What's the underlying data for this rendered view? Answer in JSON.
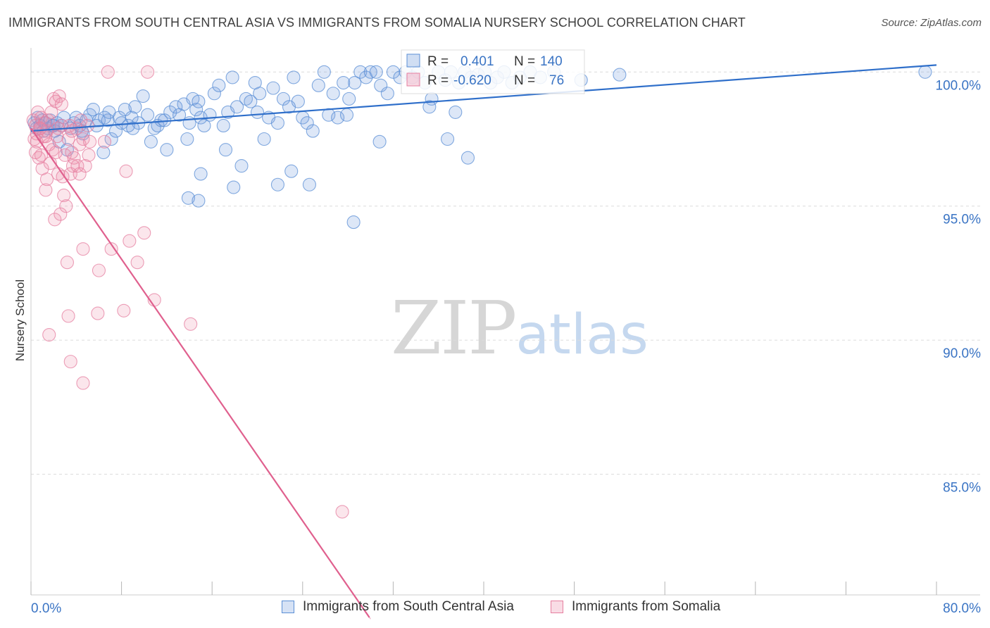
{
  "header": {
    "title": "IMMIGRANTS FROM SOUTH CENTRAL ASIA VS IMMIGRANTS FROM SOMALIA NURSERY SCHOOL CORRELATION CHART",
    "source": "Source: ZipAtlas.com"
  },
  "watermark": {
    "part1": "ZIP",
    "part2": "atlas"
  },
  "colors": {
    "blue": "#5b8fd6",
    "blue_fill": "rgba(120,160,222,0.25)",
    "blue_line": "#2f6fca",
    "pink": "#e67fa0",
    "pink_fill": "rgba(236,140,170,0.22)",
    "pink_line": "#e0608e",
    "axis_text": "#3a74c4",
    "grid": "#dcdcdc"
  },
  "legend_box": {
    "rows": [
      {
        "r_label": "R =",
        "r_value": "0.401",
        "n_label": "N =",
        "n_value": "140"
      },
      {
        "r_label": "R =",
        "r_value": "-0.620",
        "n_label": "N =",
        "n_value": "76"
      }
    ]
  },
  "legend": {
    "items": [
      {
        "label": "Immigrants from South Central Asia"
      },
      {
        "label": "Immigrants from Somalia"
      }
    ]
  },
  "chart_data": {
    "type": "scatter",
    "title": "IMMIGRANTS FROM SOUTH CENTRAL ASIA VS IMMIGRANTS FROM SOMALIA NURSERY SCHOOL CORRELATION CHART",
    "xlabel": "",
    "ylabel": "Nursery School",
    "xlim": [
      0,
      80
    ],
    "ylim": [
      80.5,
      100.9
    ],
    "x_tick_labels": [
      "0.0%",
      "80.0%"
    ],
    "y_ticks": [
      100,
      95,
      90,
      85
    ],
    "y_tick_labels": [
      "100.0%",
      "95.0%",
      "90.0%",
      "85.0%"
    ],
    "grid": true,
    "legend_position": "bottom",
    "series": [
      {
        "name": "Immigrants from South Central Asia",
        "color": "#5b8fd6",
        "r": 0.401,
        "n": 140,
        "trend": {
          "x": [
            0,
            80
          ],
          "y": [
            97.8,
            100.26
          ]
        },
        "points": [
          [
            0.3,
            98.1
          ],
          [
            0.5,
            97.9
          ],
          [
            0.6,
            98.3
          ],
          [
            0.8,
            98.0
          ],
          [
            1.0,
            98.2
          ],
          [
            1.1,
            97.8
          ],
          [
            1.3,
            98.1
          ],
          [
            1.5,
            97.9
          ],
          [
            1.7,
            98.2
          ],
          [
            1.9,
            98.0
          ],
          [
            2.1,
            97.8
          ],
          [
            2.3,
            98.1
          ],
          [
            2.5,
            97.4
          ],
          [
            2.7,
            98.0
          ],
          [
            2.9,
            98.3
          ],
          [
            3.2,
            97.1
          ],
          [
            3.5,
            97.9
          ],
          [
            3.8,
            98.1
          ],
          [
            4.0,
            98.3
          ],
          [
            4.3,
            98.0
          ],
          [
            4.6,
            97.7
          ],
          [
            4.9,
            98.2
          ],
          [
            5.2,
            98.4
          ],
          [
            5.5,
            98.6
          ],
          [
            5.8,
            98.0
          ],
          [
            6.0,
            98.2
          ],
          [
            6.4,
            97.0
          ],
          [
            6.8,
            98.2
          ],
          [
            7.1,
            97.5
          ],
          [
            7.5,
            97.8
          ],
          [
            7.8,
            98.3
          ],
          [
            8.0,
            98.1
          ],
          [
            8.3,
            98.6
          ],
          [
            8.6,
            98.0
          ],
          [
            8.9,
            98.3
          ],
          [
            9.2,
            98.7
          ],
          [
            9.5,
            98.1
          ],
          [
            9.9,
            99.1
          ],
          [
            10.3,
            98.4
          ],
          [
            10.6,
            97.4
          ],
          [
            10.9,
            97.9
          ],
          [
            11.2,
            98.0
          ],
          [
            11.5,
            98.2
          ],
          [
            12.0,
            97.1
          ],
          [
            12.3,
            98.5
          ],
          [
            12.8,
            98.7
          ],
          [
            13.1,
            98.4
          ],
          [
            13.5,
            98.8
          ],
          [
            13.8,
            97.5
          ],
          [
            14.0,
            98.1
          ],
          [
            14.3,
            99.0
          ],
          [
            14.6,
            98.6
          ],
          [
            15.0,
            98.3
          ],
          [
            15.3,
            98.0
          ],
          [
            15.8,
            98.4
          ],
          [
            16.2,
            99.2
          ],
          [
            16.6,
            99.5
          ],
          [
            17.0,
            98.0
          ],
          [
            17.4,
            98.5
          ],
          [
            17.8,
            99.8
          ],
          [
            18.2,
            98.7
          ],
          [
            18.6,
            96.5
          ],
          [
            19.0,
            99.0
          ],
          [
            19.4,
            98.9
          ],
          [
            19.8,
            99.6
          ],
          [
            20.2,
            99.2
          ],
          [
            20.6,
            97.5
          ],
          [
            21.0,
            98.3
          ],
          [
            21.4,
            99.4
          ],
          [
            21.8,
            98.1
          ],
          [
            22.3,
            99.0
          ],
          [
            22.8,
            98.7
          ],
          [
            23.2,
            99.8
          ],
          [
            23.6,
            98.9
          ],
          [
            24.0,
            98.3
          ],
          [
            24.4,
            98.1
          ],
          [
            24.9,
            97.8
          ],
          [
            25.4,
            99.5
          ],
          [
            25.9,
            100.0
          ],
          [
            26.3,
            98.4
          ],
          [
            26.7,
            99.2
          ],
          [
            27.1,
            98.3
          ],
          [
            27.6,
            99.6
          ],
          [
            28.1,
            99.0
          ],
          [
            28.6,
            99.6
          ],
          [
            29.1,
            100.0
          ],
          [
            29.6,
            99.8
          ],
          [
            30.0,
            100.0
          ],
          [
            30.5,
            100.0
          ],
          [
            30.9,
            99.5
          ],
          [
            31.5,
            99.2
          ],
          [
            32.0,
            100.0
          ],
          [
            32.6,
            99.8
          ],
          [
            33.1,
            100.0
          ],
          [
            33.7,
            99.8
          ],
          [
            34.2,
            100.0
          ],
          [
            34.8,
            99.6
          ],
          [
            35.4,
            99.0
          ],
          [
            36.0,
            100.0
          ],
          [
            36.6,
            99.7
          ],
          [
            37.1,
            100.0
          ],
          [
            37.8,
            99.6
          ],
          [
            38.3,
            100.0
          ],
          [
            38.9,
            99.8
          ],
          [
            39.5,
            99.9
          ],
          [
            40.1,
            100.0
          ],
          [
            40.6,
            99.6
          ],
          [
            41.2,
            99.8
          ],
          [
            41.8,
            100.0
          ],
          [
            42.5,
            99.6
          ],
          [
            43.2,
            99.8
          ],
          [
            44.1,
            100.0
          ],
          [
            45.0,
            99.8
          ],
          [
            46.2,
            100.0
          ],
          [
            48.6,
            99.7
          ],
          [
            52.0,
            99.9
          ],
          [
            79.0,
            100.0
          ],
          [
            2.0,
            98.0
          ],
          [
            4.5,
            97.8
          ],
          [
            6.9,
            98.5
          ],
          [
            9.0,
            97.9
          ],
          [
            11.8,
            98.2
          ],
          [
            14.8,
            98.9
          ],
          [
            17.2,
            97.1
          ],
          [
            20.0,
            98.5
          ],
          [
            24.6,
            95.8
          ],
          [
            27.9,
            98.4
          ],
          [
            30.8,
            97.4
          ],
          [
            35.2,
            98.7
          ],
          [
            38.6,
            96.8
          ],
          [
            13.9,
            95.3
          ],
          [
            14.8,
            95.2
          ],
          [
            15.0,
            96.2
          ],
          [
            17.9,
            95.7
          ],
          [
            21.8,
            95.8
          ],
          [
            23.0,
            96.3
          ],
          [
            28.5,
            94.4
          ],
          [
            36.8,
            97.5
          ],
          [
            37.5,
            98.5
          ],
          [
            6.5,
            98.3
          ]
        ]
      },
      {
        "name": "Immigrants from Somalia",
        "color": "#e67fa0",
        "r": -0.62,
        "n": 76,
        "trend": {
          "x": [
            0,
            30
          ],
          "y": [
            97.9,
            79.6
          ],
          "solid_until_x": 29.9
        },
        "points": [
          [
            0.2,
            98.2
          ],
          [
            0.3,
            97.5
          ],
          [
            0.4,
            98.0
          ],
          [
            0.5,
            97.7
          ],
          [
            0.6,
            98.5
          ],
          [
            0.7,
            96.8
          ],
          [
            0.8,
            97.9
          ],
          [
            0.9,
            98.3
          ],
          [
            1.0,
            96.4
          ],
          [
            1.1,
            97.6
          ],
          [
            1.2,
            98.1
          ],
          [
            1.3,
            95.6
          ],
          [
            1.4,
            97.8
          ],
          [
            1.5,
            98.2
          ],
          [
            1.6,
            97.3
          ],
          [
            1.7,
            96.6
          ],
          [
            1.8,
            98.5
          ],
          [
            1.9,
            97.1
          ],
          [
            2.0,
            99.0
          ],
          [
            2.1,
            94.5
          ],
          [
            2.2,
            98.9
          ],
          [
            2.3,
            97.6
          ],
          [
            2.4,
            96.2
          ],
          [
            2.5,
            99.1
          ],
          [
            2.6,
            94.7
          ],
          [
            2.7,
            98.8
          ],
          [
            2.8,
            96.1
          ],
          [
            2.9,
            95.4
          ],
          [
            3.0,
            96.9
          ],
          [
            3.1,
            95.0
          ],
          [
            3.3,
            97.5
          ],
          [
            3.4,
            98.0
          ],
          [
            3.5,
            96.2
          ],
          [
            3.6,
            97.8
          ],
          [
            3.7,
            96.5
          ],
          [
            3.8,
            96.8
          ],
          [
            4.0,
            97.9
          ],
          [
            4.1,
            96.5
          ],
          [
            4.3,
            97.3
          ],
          [
            4.4,
            98.2
          ],
          [
            4.6,
            97.5
          ],
          [
            4.8,
            96.5
          ],
          [
            5.0,
            98.0
          ],
          [
            5.2,
            97.4
          ],
          [
            6.0,
            92.6
          ],
          [
            6.5,
            97.4
          ],
          [
            6.8,
            100.0
          ],
          [
            7.1,
            93.4
          ],
          [
            8.2,
            91.1
          ],
          [
            8.4,
            96.3
          ],
          [
            8.7,
            93.7
          ],
          [
            9.4,
            92.9
          ],
          [
            10.0,
            94.0
          ],
          [
            10.3,
            100.0
          ],
          [
            10.9,
            91.5
          ],
          [
            14.1,
            90.6
          ],
          [
            27.5,
            83.6
          ],
          [
            3.2,
            92.9
          ],
          [
            3.3,
            90.9
          ],
          [
            1.6,
            90.2
          ],
          [
            3.5,
            89.2
          ],
          [
            4.6,
            88.4
          ],
          [
            4.6,
            93.4
          ],
          [
            5.9,
            91.0
          ],
          [
            0.5,
            97.4
          ],
          [
            0.8,
            97.9
          ],
          [
            1.3,
            97.6
          ],
          [
            2.2,
            97.0
          ],
          [
            2.7,
            98.0
          ],
          [
            3.6,
            97.0
          ],
          [
            4.3,
            96.2
          ],
          [
            0.9,
            96.9
          ],
          [
            1.4,
            96.0
          ],
          [
            2.4,
            97.9
          ],
          [
            5.1,
            96.9
          ],
          [
            0.4,
            97.0
          ]
        ]
      }
    ]
  }
}
